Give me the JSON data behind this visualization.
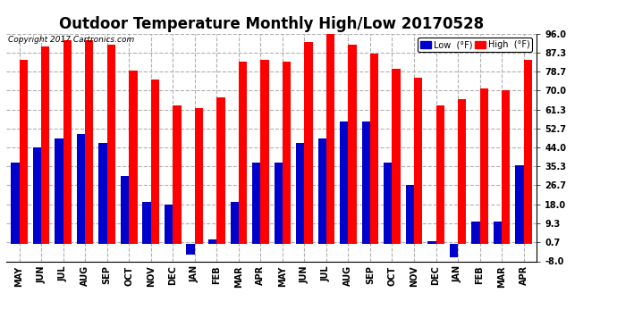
{
  "title": "Outdoor Temperature Monthly High/Low 20170528",
  "copyright": "Copyright 2017 Cartronics.com",
  "legend_low": "Low  (°F)",
  "legend_high": "High  (°F)",
  "months": [
    "MAY",
    "JUN",
    "JUL",
    "AUG",
    "SEP",
    "OCT",
    "NOV",
    "DEC",
    "JAN",
    "FEB",
    "MAR",
    "APR",
    "MAY",
    "JUN",
    "JUL",
    "AUG",
    "SEP",
    "OCT",
    "NOV",
    "DEC",
    "JAN",
    "FEB",
    "MAR",
    "APR"
  ],
  "highs": [
    84,
    90,
    93,
    93,
    91,
    79,
    75,
    63,
    62,
    67,
    83,
    84,
    83,
    92,
    96,
    91,
    87,
    80,
    76,
    63,
    66,
    71,
    70,
    84
  ],
  "lows": [
    37,
    44,
    48,
    50,
    46,
    31,
    19,
    18,
    -5,
    2,
    19,
    37,
    37,
    46,
    48,
    56,
    56,
    37,
    27,
    1,
    -6,
    10,
    10,
    36
  ],
  "ylim_min": -8.0,
  "ylim_max": 96.0,
  "yticks": [
    96.0,
    87.3,
    78.7,
    70.0,
    61.3,
    52.7,
    44.0,
    35.3,
    26.7,
    18.0,
    9.3,
    0.7,
    -8.0
  ],
  "high_color": "#ff0000",
  "low_color": "#0000cc",
  "bg_color": "#ffffff",
  "plot_bg_color": "#ffffff",
  "grid_color": "#b0b0b0",
  "title_fontsize": 12,
  "bar_width": 0.38
}
